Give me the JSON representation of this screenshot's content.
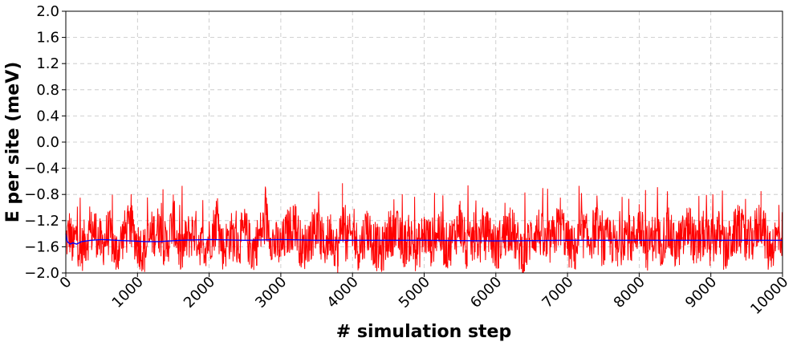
{
  "chart_data": {
    "type": "line",
    "title": "",
    "xlabel": "# simulation step",
    "ylabel": "E per site (meV)",
    "xlim": [
      0,
      10000
    ],
    "ylim": [
      -2.0,
      2.0
    ],
    "xticks": [
      0,
      1000,
      2000,
      3000,
      4000,
      5000,
      6000,
      7000,
      8000,
      9000,
      10000
    ],
    "xtick_labels": [
      "0",
      "1000",
      "2000",
      "3000",
      "4000",
      "5000",
      "6000",
      "7000",
      "8000",
      "9000",
      "10000"
    ],
    "yticks": [
      2.0,
      1.6,
      1.2,
      0.8,
      0.4,
      0.0,
      -0.4,
      -0.8,
      -1.2,
      -1.6,
      -2.0
    ],
    "ytick_labels": [
      "2.0",
      "1.6",
      "1.2",
      "0.8",
      "0.4",
      "0.0",
      "−0.4",
      "−0.8",
      "−1.2",
      "−1.6",
      "−2.0"
    ],
    "grid": true,
    "xtick_rotation_deg": 45,
    "series": [
      {
        "color": "#ff0000",
        "style": "noisy",
        "mean": -1.5,
        "min_approx": -2.0,
        "max_approx": -0.63,
        "points": [
          [
            0,
            -1.55
          ],
          [
            50,
            -1.2
          ],
          [
            100,
            -1.75
          ],
          [
            150,
            -1.3
          ],
          [
            200,
            -1.9
          ],
          [
            300,
            -1.4
          ],
          [
            400,
            -1.1
          ],
          [
            500,
            -1.7
          ],
          [
            600,
            -1.2
          ],
          [
            700,
            -1.95
          ],
          [
            800,
            -1.35
          ],
          [
            900,
            -1.0
          ],
          [
            1000,
            -1.6
          ],
          [
            1100,
            -1.85
          ],
          [
            1200,
            -1.3
          ],
          [
            1300,
            -1.1
          ],
          [
            1400,
            -1.75
          ],
          [
            1500,
            -0.8
          ],
          [
            1600,
            -1.95
          ],
          [
            1700,
            -1.4
          ],
          [
            1800,
            -1.2
          ],
          [
            1900,
            -1.7
          ],
          [
            2000,
            -1.5
          ],
          [
            2100,
            -0.9
          ],
          [
            2200,
            -1.8
          ],
          [
            2300,
            -1.3
          ],
          [
            2400,
            -1.65
          ],
          [
            2500,
            -1.15
          ],
          [
            2600,
            -1.9
          ],
          [
            2700,
            -1.35
          ],
          [
            2800,
            -0.85
          ],
          [
            2900,
            -1.6
          ],
          [
            3000,
            -1.75
          ],
          [
            3100,
            -1.2
          ],
          [
            3200,
            -0.95
          ],
          [
            3300,
            -1.85
          ],
          [
            3400,
            -1.4
          ],
          [
            3500,
            -1.1
          ],
          [
            3600,
            -1.7
          ],
          [
            3700,
            -1.25
          ],
          [
            3800,
            -1.9
          ],
          [
            3860,
            -0.63
          ],
          [
            3900,
            -1.55
          ],
          [
            4000,
            -1.35
          ],
          [
            4100,
            -1.8
          ],
          [
            4200,
            -1.05
          ],
          [
            4300,
            -1.6
          ],
          [
            4400,
            -1.95
          ],
          [
            4500,
            -1.3
          ],
          [
            4600,
            -1.15
          ],
          [
            4700,
            -1.7
          ],
          [
            4800,
            -1.4
          ],
          [
            4900,
            -1.85
          ],
          [
            5000,
            -1.25
          ],
          [
            5100,
            -1.6
          ],
          [
            5200,
            -1.1
          ],
          [
            5300,
            -1.75
          ],
          [
            5400,
            -1.45
          ],
          [
            5500,
            -0.9
          ],
          [
            5600,
            -1.9
          ],
          [
            5700,
            -1.35
          ],
          [
            5800,
            -1.55
          ],
          [
            5900,
            -1.2
          ],
          [
            6000,
            -1.8
          ],
          [
            6100,
            -1.4
          ],
          [
            6200,
            -1.0
          ],
          [
            6300,
            -1.65
          ],
          [
            6400,
            -1.95
          ],
          [
            6500,
            -1.3
          ],
          [
            6600,
            -1.15
          ],
          [
            6700,
            -1.75
          ],
          [
            6800,
            -1.45
          ],
          [
            6900,
            -0.85
          ],
          [
            7000,
            -1.6
          ],
          [
            7100,
            -1.85
          ],
          [
            7200,
            -1.25
          ],
          [
            7300,
            -1.5
          ],
          [
            7400,
            -1.05
          ],
          [
            7500,
            -1.7
          ],
          [
            7600,
            -1.4
          ],
          [
            7700,
            -1.9
          ],
          [
            7800,
            -1.2
          ],
          [
            7900,
            -1.55
          ],
          [
            8000,
            -0.95
          ],
          [
            8100,
            -1.8
          ],
          [
            8200,
            -1.35
          ],
          [
            8300,
            -1.6
          ],
          [
            8400,
            -1.15
          ],
          [
            8500,
            -1.75
          ],
          [
            8600,
            -1.45
          ],
          [
            8700,
            -1.0
          ],
          [
            8800,
            -1.85
          ],
          [
            8900,
            -1.3
          ],
          [
            9000,
            -1.65
          ],
          [
            9100,
            -1.2
          ],
          [
            9200,
            -1.9
          ],
          [
            9300,
            -1.4
          ],
          [
            9400,
            -1.05
          ],
          [
            9500,
            -1.7
          ],
          [
            9600,
            -1.35
          ],
          [
            9700,
            -0.75
          ],
          [
            9800,
            -1.8
          ],
          [
            9900,
            -1.5
          ],
          [
            10000,
            -1.25
          ]
        ]
      },
      {
        "color": "#0000ff",
        "style": "smooth",
        "points": [
          [
            0,
            -1.4
          ],
          [
            20,
            -1.52
          ],
          [
            60,
            -1.56
          ],
          [
            100,
            -1.54
          ],
          [
            150,
            -1.56
          ],
          [
            220,
            -1.52
          ],
          [
            350,
            -1.5
          ],
          [
            500,
            -1.49
          ],
          [
            700,
            -1.5
          ],
          [
            900,
            -1.51
          ],
          [
            1100,
            -1.52
          ],
          [
            1300,
            -1.52
          ],
          [
            1600,
            -1.5
          ],
          [
            2000,
            -1.49
          ],
          [
            2500,
            -1.5
          ],
          [
            3000,
            -1.49
          ],
          [
            3500,
            -1.5
          ],
          [
            4000,
            -1.5
          ],
          [
            5000,
            -1.5
          ],
          [
            6000,
            -1.51
          ],
          [
            7000,
            -1.5
          ],
          [
            8000,
            -1.5
          ],
          [
            9000,
            -1.5
          ],
          [
            10000,
            -1.5
          ]
        ]
      }
    ]
  }
}
